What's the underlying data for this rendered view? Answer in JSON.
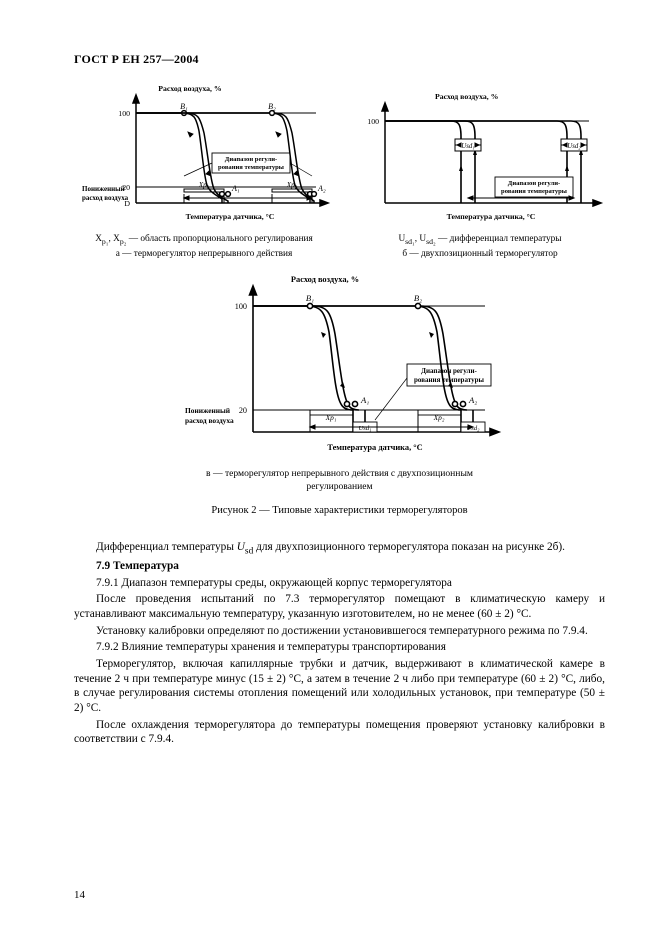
{
  "header": "ГОСТ Р ЕН 257—2004",
  "page_number": "14",
  "figure_caption": "Рисунок 2 — Типовые характеристики терморегуляторов",
  "chart_a": {
    "y_title": "Расход воздуха, %",
    "y_ticks": [
      "100",
      "20",
      "D"
    ],
    "x_title": "Температура датчика, °С",
    "left_label_line1": "Пониженный",
    "left_label_line2": "расход воздуха",
    "box_line1": "Диапазон регули-",
    "box_line2": "рования температуры",
    "B1": "B₁",
    "B2": "B₂",
    "A1": "A₁",
    "A2": "A₂",
    "Xp1": "Xp₁",
    "Xp2": "Xp₂",
    "under1_html": "X<sub>p₁</sub>, X<sub>p₂</sub> — область пропорционального регулирования",
    "under2": "a — терморегулятор непрерывного действия"
  },
  "chart_b": {
    "y_title": "Расход воздуха, %",
    "y_ticks": [
      "100"
    ],
    "x_title": "Температура датчика, °С",
    "box_line1": "Диапазон регули-",
    "box_line2": "рования температуры",
    "Usd1": "Usd₁",
    "Usd2": "Usd₂",
    "under1_html": "U<sub>sd₁</sub>, U<sub>sd₂</sub> — дифференциал температуры",
    "under2": "б — двухпозиционный терморегулятор"
  },
  "chart_c": {
    "y_title": "Расход воздуха, %",
    "y_ticks": [
      "100",
      "20"
    ],
    "x_title": "Температура датчика, °С",
    "left_label_line1": "Пониженный",
    "left_label_line2": "расход воздуха",
    "box_line1": "Диапазон регули-",
    "box_line2": "рования температуры",
    "B1": "B₁",
    "B2": "B₂",
    "A1": "A₁",
    "A2": "A₂",
    "Xp1": "Xp₁",
    "Xp2": "Xp₂",
    "Usd1": "Usd₁",
    "Usd2": "Usd₂",
    "under": "в — терморегулятор непрерывного действия с двухпозиционным регулированием"
  },
  "body": {
    "p1_html": "Дифференциал температуры <span class=\"sub-i\">U</span><sub>sd</sub> для двухпозиционного терморегулятора показан на рисунке 2б).",
    "p2": "7.9 Температура",
    "p3": "7.9.1 Диапазон температуры среды, окружающей корпус терморегулятора",
    "p4": "После проведения испытаний по 7.3 терморегулятор помещают в климатическую камеру и устанавливают максимальную температуру, указанную изготовителем, но не менее (60 ± 2) °С.",
    "p5": "Установку калибровки определяют по достижении установившегося температурного режима по 7.9.4.",
    "p6": "7.9.2 Влияние температуры хранения и температуры транспортирования",
    "p7": "Терморегулятор, включая капиллярные трубки и датчик, выдерживают в климатической камере в течение 2 ч при температуре минус (15 ± 2) °С, а затем в течение 2 ч либо при температуре (60 ± 2) °С, либо, в случае регулирования системы отопления помещений или холодильных установок, при температуре (50 ± 2) °С.",
    "p8": "После охлаждения терморегулятора до температуры помещения проверяют установку калибровки в соответствии с 7.9.4."
  },
  "style": {
    "stroke": "#000000",
    "stroke_width": 1.4,
    "thin_stroke": 0.9,
    "font_small": 7.2,
    "font_tiny": 6.8,
    "grid_dash": "none"
  }
}
